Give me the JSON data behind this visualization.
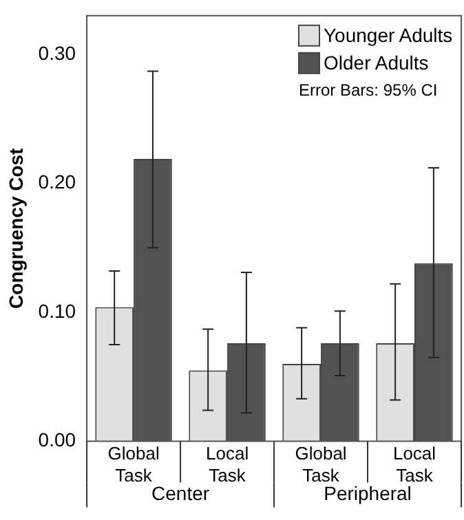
{
  "chart_data": {
    "type": "bar",
    "ylabel": "Congruency Cost",
    "categories": [
      "Global Task",
      "Local Task",
      "Global Task",
      "Local Task"
    ],
    "series": [
      {
        "name": "Younger Adults",
        "color": "#e0e0e0",
        "values": [
          0.104,
          0.055,
          0.06,
          0.076
        ],
        "errors": [
          [
            0.075,
            0.132
          ],
          [
            0.024,
            0.087
          ],
          [
            0.033,
            0.088
          ],
          [
            0.032,
            0.122
          ]
        ]
      },
      {
        "name": "Older Adults",
        "color": "#525252",
        "values": [
          0.219,
          0.076,
          0.076,
          0.138
        ],
        "errors": [
          [
            0.15,
            0.287
          ],
          [
            0.022,
            0.131
          ],
          [
            0.051,
            0.101
          ],
          [
            0.065,
            0.212
          ]
        ]
      }
    ],
    "ylim": [
      0,
      0.33
    ],
    "yticks": [
      {
        "value": 0,
        "label": "0.00"
      },
      {
        "value": 0.1,
        "label": "0.10"
      },
      {
        "value": 0.2,
        "label": "0.20"
      },
      {
        "value": 0.3,
        "label": "0.30"
      }
    ],
    "grid": false,
    "legend": "top right",
    "annotations": [
      "Error Bars: 95% CI",
      "Center",
      "Peripheral"
    ]
  }
}
